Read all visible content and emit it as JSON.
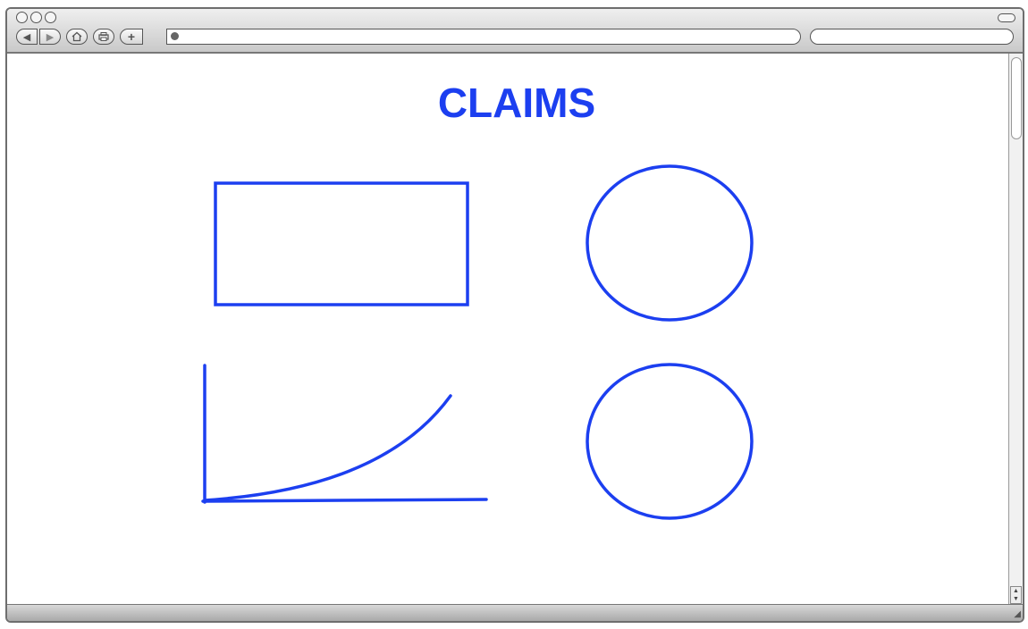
{
  "browser": {
    "url_value": "",
    "search_value": ""
  },
  "page": {
    "title": "CLAIMS",
    "accent_color": "#1c3ff0"
  },
  "icons": {
    "back": "back-arrow-icon",
    "forward": "forward-arrow-icon",
    "home": "home-icon",
    "print": "print-icon",
    "add": "plus-icon",
    "globe": "globe-icon"
  }
}
